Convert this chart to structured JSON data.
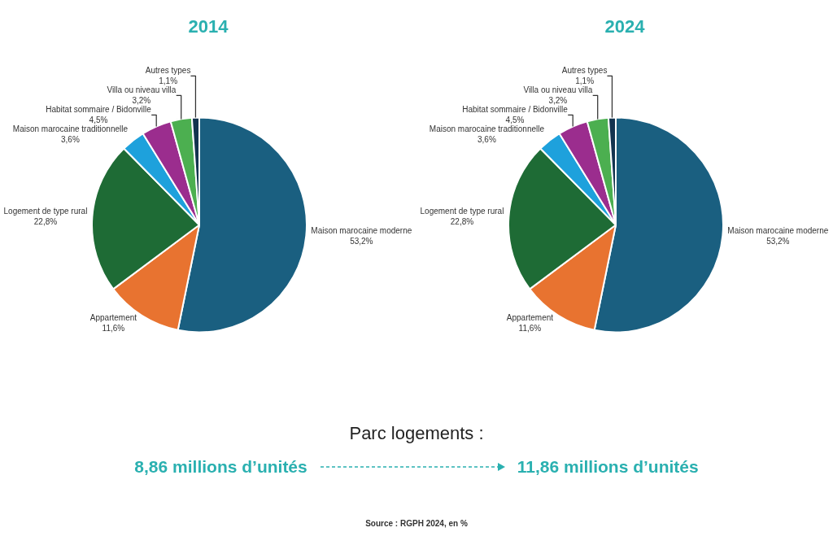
{
  "chart_data": [
    {
      "type": "pie",
      "title": "2014",
      "categories": [
        "Maison marocaine moderne",
        "Appartement",
        "Logement de type rural",
        "Maison marocaine traditionnelle",
        "Habitat sommaire / Bidonville",
        "Villa ou niveau villa",
        "Autres types"
      ],
      "values": [
        53.2,
        11.6,
        22.8,
        3.6,
        4.5,
        3.2,
        1.1
      ],
      "value_labels": [
        "53,2%",
        "11,6%",
        "22,8%",
        "3,6%",
        "4,5%",
        "3,2%",
        "1,1%"
      ],
      "colors": [
        "#1a5f80",
        "#e87330",
        "#1e6b35",
        "#1ea1dc",
        "#9b2d8e",
        "#4caf50",
        "#13334f"
      ]
    },
    {
      "type": "pie",
      "title": "2024",
      "categories": [
        "Maison marocaine moderne",
        "Appartement",
        "Logement de type rural",
        "Maison marocaine traditionnelle",
        "Habitat sommaire / Bidonville",
        "Villa ou niveau villa",
        "Autres types"
      ],
      "values": [
        53.2,
        11.6,
        22.8,
        3.6,
        4.5,
        3.2,
        1.1
      ],
      "value_labels": [
        "53,2%",
        "11,6%",
        "22,8%",
        "3,6%",
        "4,5%",
        "3,2%",
        "1,1%"
      ],
      "colors": [
        "#1a5f80",
        "#e87330",
        "#1e6b35",
        "#1ea1dc",
        "#9b2d8e",
        "#4caf50",
        "#13334f"
      ]
    },
    {
      "type": "other",
      "annotations": [
        "Parc logements :",
        "8,86 millions d’unités",
        "11,86 millions d’unités",
        "Source : RGPH 2024, en %"
      ]
    }
  ]
}
